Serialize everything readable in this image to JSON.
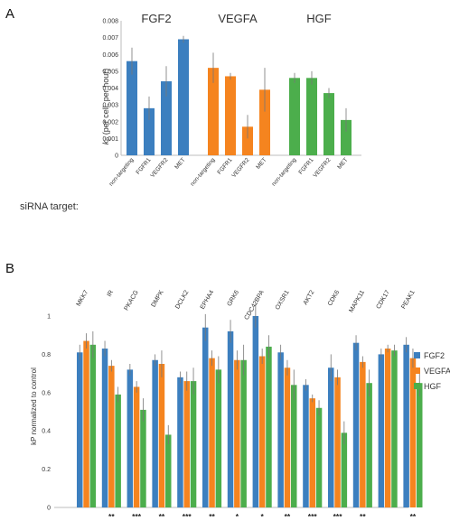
{
  "panel_a_label": "A",
  "panel_b_label": "B",
  "chart_data": [
    {
      "type": "bar",
      "panel": "A",
      "ylabel_prefix": "k",
      "ylabel_sub": "P",
      "ylabel_rest": " (per cell, per hour)",
      "ylim": [
        0,
        0.008
      ],
      "yticks": [
        "0",
        "0.001",
        "0.002",
        "0.003",
        "0.004",
        "0.005",
        "0.006",
        "0.007",
        "0.008"
      ],
      "row_label": "siRNA target:",
      "categories": [
        "non-targeting",
        "FGFR1",
        "VEGFR2",
        "MET"
      ],
      "groups": [
        {
          "name": "FGF2",
          "color": "#3c7fbf",
          "values": [
            0.0056,
            0.0028,
            0.0044,
            0.0069
          ],
          "errors": [
            0.0008,
            0.0007,
            0.0009,
            0.0002
          ]
        },
        {
          "name": "VEGFA",
          "color": "#f5841f",
          "values": [
            0.0052,
            0.0047,
            0.0017,
            0.0039
          ],
          "errors": [
            0.0009,
            0.0002,
            0.0007,
            0.0013
          ]
        },
        {
          "name": "HGF",
          "color": "#4cae4c",
          "values": [
            0.0046,
            0.0046,
            0.0037,
            0.0021
          ],
          "errors": [
            0.0003,
            0.0004,
            0.0003,
            0.0007
          ]
        }
      ],
      "grid": false
    },
    {
      "type": "bar",
      "panel": "B",
      "ylabel": "kP normalized to control",
      "ylim": [
        0,
        1
      ],
      "yticks": [
        "0",
        "0.2",
        "0.4",
        "0.6",
        "0.8",
        "1"
      ],
      "categories": [
        "MKK7",
        "IR",
        "PKACG",
        "DMPK",
        "DCLK2",
        "EPHA4",
        "GRK6",
        "CDC42BPA",
        "OXSR1",
        "AKT2",
        "CDK6",
        "MAPK11",
        "CDK17",
        "PEAK1"
      ],
      "series": [
        {
          "name": "FGF2",
          "color": "#3c7fbf",
          "values": [
            0.81,
            0.83,
            0.72,
            0.77,
            0.68,
            0.94,
            0.92,
            1.0,
            0.81,
            0.64,
            0.73,
            0.86,
            0.8,
            0.85
          ]
        },
        {
          "name": "VEGFA",
          "color": "#f5841f",
          "values": [
            0.87,
            0.74,
            0.63,
            0.75,
            0.66,
            0.78,
            0.77,
            0.79,
            0.73,
            0.57,
            0.68,
            0.76,
            0.83,
            0.78
          ]
        },
        {
          "name": "HGF",
          "color": "#4cae4c",
          "values": [
            0.85,
            0.59,
            0.51,
            0.38,
            0.66,
            0.72,
            0.77,
            0.84,
            0.64,
            0.52,
            0.39,
            0.65,
            0.82,
            0.65
          ]
        }
      ],
      "errors": [
        [
          0.04,
          0.04,
          0.03,
          0.03,
          0.03,
          0.07,
          0.06,
          0.06,
          0.04,
          0.03,
          0.07,
          0.04,
          0.03,
          0.04
        ],
        [
          0.04,
          0.03,
          0.03,
          0.07,
          0.05,
          0.04,
          0.05,
          0.04,
          0.04,
          0.02,
          0.04,
          0.03,
          0.02,
          0.05
        ],
        [
          0.07,
          0.04,
          0.06,
          0.05,
          0.07,
          0.07,
          0.08,
          0.06,
          0.08,
          0.04,
          0.06,
          0.07,
          0.03,
          0.07
        ]
      ],
      "significance": [
        "",
        "**",
        "***",
        "**",
        "***",
        "**",
        "*",
        "*",
        "**",
        "***",
        "***",
        "**",
        "",
        "**"
      ],
      "legend": [
        "FGF2",
        "VEGFA",
        "HGF"
      ],
      "legend_position": "right",
      "grid": false
    }
  ]
}
